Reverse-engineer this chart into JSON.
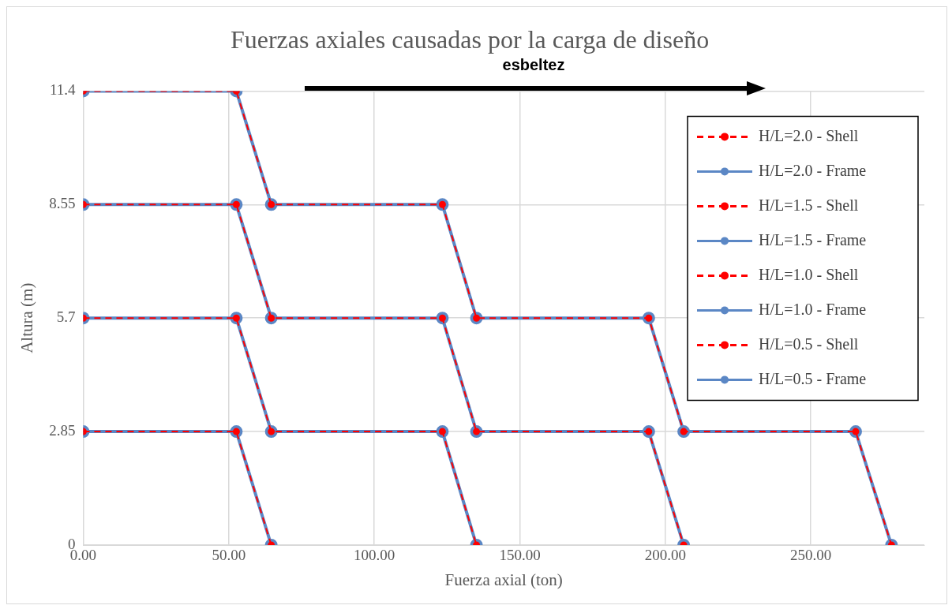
{
  "chart_data": {
    "type": "line",
    "title": "Fuerzas axiales causadas por la carga de diseño",
    "xlabel": "Fuerza axial (ton)",
    "ylabel": "Altura (m)",
    "xlim": [
      0,
      289
    ],
    "ylim": [
      0,
      11.4
    ],
    "xticks": [
      {
        "value": 0,
        "label": "0.00"
      },
      {
        "value": 50,
        "label": "50.00"
      },
      {
        "value": 100,
        "label": "100.00"
      },
      {
        "value": 150,
        "label": "150.00"
      },
      {
        "value": 200,
        "label": "200.00"
      },
      {
        "value": 250,
        "label": "250.00"
      }
    ],
    "yticks": [
      0,
      2.85,
      5.7,
      8.55,
      11.4
    ],
    "grid": true,
    "legend": "top right",
    "marker": "circle",
    "annotations": [
      "esbeltez"
    ],
    "series": [
      {
        "name": "H/L=2.0 - Shell",
        "color": "#ff0000",
        "line_style": "dashed",
        "x": [
          0,
          52.6,
          64.6,
          123.4,
          135.1,
          194.3,
          206.3,
          265.4,
          277.7
        ],
        "values": [
          11.4,
          11.4,
          8.55,
          8.55,
          5.7,
          5.7,
          2.85,
          2.85,
          0
        ]
      },
      {
        "name": "H/L=2.0 - Frame",
        "color": "#5b87c5",
        "line_style": "solid",
        "x": [
          0,
          52.6,
          64.6,
          123.4,
          135.1,
          194.3,
          206.3,
          265.4,
          277.7
        ],
        "values": [
          11.4,
          11.4,
          8.55,
          8.55,
          5.7,
          5.7,
          2.85,
          2.85,
          0
        ]
      },
      {
        "name": "H/L=1.5 - Shell",
        "color": "#ff0000",
        "line_style": "dashed",
        "x": [
          0,
          52.6,
          64.6,
          123.4,
          135.1,
          194.3,
          206.3
        ],
        "values": [
          8.55,
          8.55,
          5.7,
          5.7,
          2.85,
          2.85,
          0
        ]
      },
      {
        "name": "H/L=1.5 - Frame",
        "color": "#5b87c5",
        "line_style": "solid",
        "x": [
          0,
          52.6,
          64.6,
          123.4,
          135.1,
          194.3,
          206.3
        ],
        "values": [
          8.55,
          8.55,
          5.7,
          5.7,
          2.85,
          2.85,
          0
        ]
      },
      {
        "name": "H/L=1.0 - Shell",
        "color": "#ff0000",
        "line_style": "dashed",
        "x": [
          0,
          52.6,
          64.6,
          123.4,
          135.1
        ],
        "values": [
          5.7,
          5.7,
          2.85,
          2.85,
          0
        ]
      },
      {
        "name": "H/L=1.0 - Frame",
        "color": "#5b87c5",
        "line_style": "solid",
        "x": [
          0,
          52.6,
          64.6,
          123.4,
          135.1
        ],
        "values": [
          5.7,
          5.7,
          2.85,
          2.85,
          0
        ]
      },
      {
        "name": "H/L=0.5 - Shell",
        "color": "#ff0000",
        "line_style": "dashed",
        "x": [
          0,
          52.6,
          64.6
        ],
        "values": [
          2.85,
          2.85,
          0
        ]
      },
      {
        "name": "H/L=0.5 - Frame",
        "color": "#5b87c5",
        "line_style": "solid",
        "x": [
          0,
          52.6,
          64.6
        ],
        "values": [
          2.85,
          2.85,
          0
        ]
      }
    ]
  }
}
